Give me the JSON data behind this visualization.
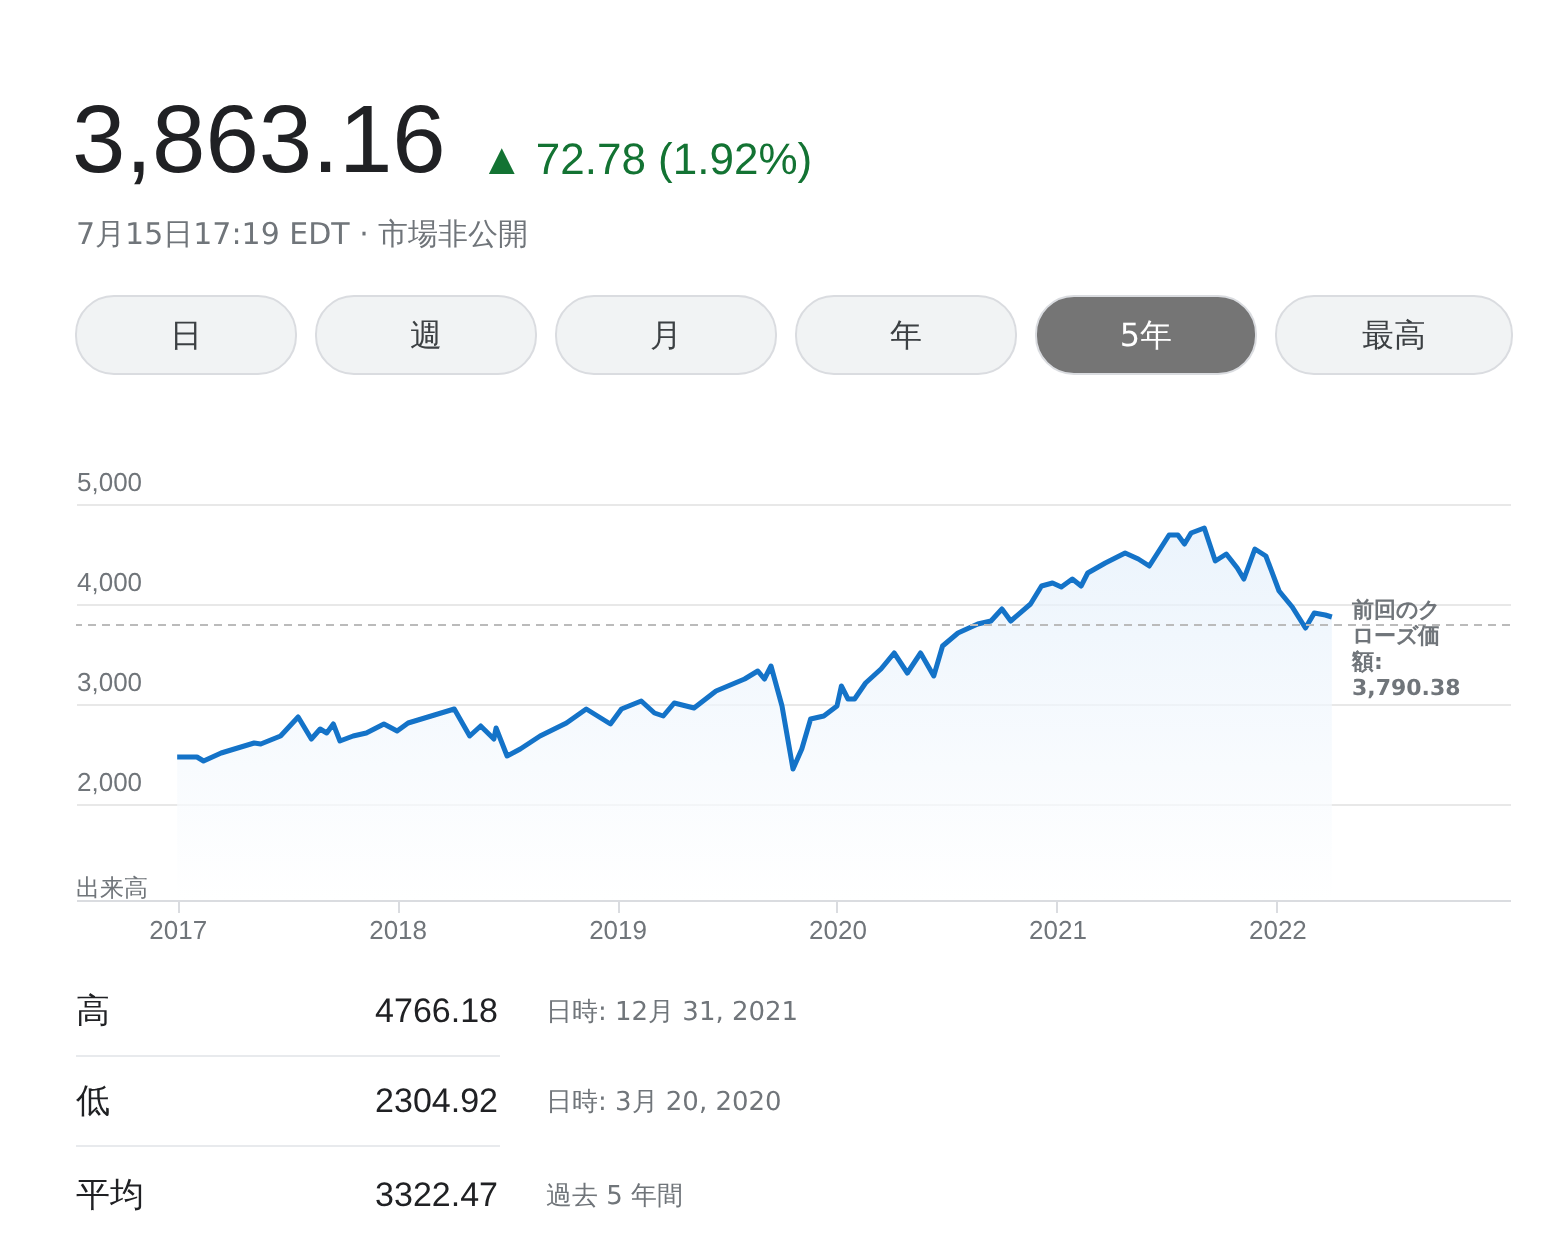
{
  "chart_data": {
    "type": "area",
    "title": "3,863.16",
    "subtitle": "▲ 72.78 (1.92%)",
    "annotations": [
      "7月15日17:19 EDT · 市場非公開",
      "日",
      "週",
      "月",
      "年",
      "5年",
      "最高",
      "出来高",
      "高",
      "4766.18",
      "日時: 12月 31, 2021",
      "低",
      "2304.92",
      "日時: 3月 20, 2020",
      "平均",
      "3322.47",
      "過去 5 年間"
    ],
    "x": [
      2017.0,
      2017.09,
      2017.12,
      2017.2,
      2017.35,
      2017.38,
      2017.47,
      2017.55,
      2017.61,
      2017.65,
      2017.68,
      2017.71,
      2017.74,
      2017.8,
      2017.86,
      2017.94,
      2018.0,
      2018.05,
      2018.17,
      2018.26,
      2018.33,
      2018.38,
      2018.44,
      2018.45,
      2018.5,
      2018.56,
      2018.65,
      2018.77,
      2018.86,
      2018.97,
      2019.02,
      2019.11,
      2019.17,
      2019.21,
      2019.26,
      2019.35,
      2019.45,
      2019.58,
      2019.64,
      2019.67,
      2019.7,
      2019.75,
      2019.8,
      2019.84,
      2019.88,
      2019.94,
      2020.0,
      2020.02,
      2020.05,
      2020.08,
      2020.13,
      2020.2,
      2020.26,
      2020.32,
      2020.38,
      2020.44,
      2020.48,
      2020.55,
      2020.64,
      2020.7,
      2020.75,
      2020.79,
      2020.88,
      2020.93,
      2020.98,
      2021.02,
      2021.07,
      2021.11,
      2021.14,
      2021.22,
      2021.31,
      2021.37,
      2021.42,
      2021.51,
      2021.55,
      2021.58,
      2021.61,
      2021.67,
      2021.72,
      2021.77,
      2021.82,
      2021.85,
      2021.9,
      2021.95,
      2022.01,
      2022.07,
      2022.13,
      2022.17,
      2022.22,
      2022.25
    ],
    "values": [
      2470,
      2470,
      2430,
      2510,
      2610,
      2600,
      2680,
      2870,
      2650,
      2750,
      2710,
      2800,
      2630,
      2680,
      2710,
      2800,
      2730,
      2810,
      2890,
      2950,
      2680,
      2780,
      2650,
      2760,
      2480,
      2550,
      2680,
      2810,
      2950,
      2800,
      2950,
      3030,
      2910,
      2880,
      3010,
      2960,
      3130,
      3250,
      3330,
      3250,
      3380,
      2980,
      2350,
      2550,
      2850,
      2880,
      2980,
      3180,
      3050,
      3050,
      3210,
      3350,
      3510,
      3310,
      3510,
      3280,
      3580,
      3710,
      3800,
      3830,
      3950,
      3830,
      4000,
      4180,
      4210,
      4170,
      4250,
      4180,
      4310,
      4410,
      4510,
      4450,
      4380,
      4690,
      4690,
      4600,
      4710,
      4760,
      4430,
      4500,
      4360,
      4250,
      4550,
      4480,
      4130,
      3970,
      3760,
      3910,
      3890,
      3870
    ],
    "color": "#1473c8",
    "xlim": [
      2016.54,
      2023.06
    ],
    "xticks": [
      2017,
      2018,
      2019,
      2020,
      2021,
      2022
    ],
    "ylim": [
      1040,
      5000
    ],
    "yticks": [
      {
        "value": 2000,
        "label": "2,000"
      },
      {
        "value": 3000,
        "label": "3,000"
      },
      {
        "value": 4000,
        "label": "4,000"
      },
      {
        "value": 5000,
        "label": "5,000"
      }
    ],
    "grid": "y",
    "ref_lines": [
      {
        "axis": "y",
        "value": 3790.38,
        "label": "前回のクローズ価額: 3,790.38",
        "color": "#bbbbbb",
        "line_style": "dashed"
      }
    ]
  }
}
